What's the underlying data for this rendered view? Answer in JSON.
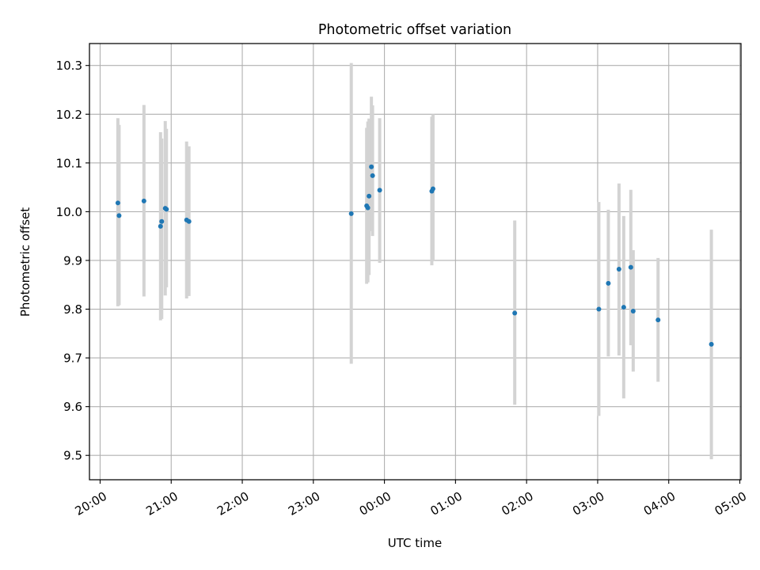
{
  "chart_data": {
    "type": "scatter",
    "title": "Photometric offset variation",
    "xlabel": "UTC time",
    "ylabel": "Photometric offset",
    "x_ticks": [
      "20:00",
      "21:00",
      "22:00",
      "23:00",
      "00:00",
      "01:00",
      "02:00",
      "03:00",
      "04:00",
      "05:00"
    ],
    "y_ticks": [
      "9.5",
      "9.6",
      "9.7",
      "9.8",
      "9.9",
      "10.0",
      "10.1",
      "10.2",
      "10.3"
    ],
    "xlim": [
      "19:51",
      "05:01"
    ],
    "ylim": [
      9.45,
      10.345
    ],
    "grid": true,
    "colors": {
      "point": "#1f77b4",
      "errorbar": "#d3d3d3",
      "grid": "#b0b0b0"
    },
    "points": [
      {
        "x": "20:15",
        "y": 10.018,
        "lo": 9.806,
        "hi": 10.192
      },
      {
        "x": "20:16",
        "y": 9.992,
        "lo": 9.808,
        "hi": 10.178
      },
      {
        "x": "20:37",
        "y": 10.022,
        "lo": 9.826,
        "hi": 10.219
      },
      {
        "x": "20:51",
        "y": 9.97,
        "lo": 9.777,
        "hi": 10.163
      },
      {
        "x": "20:52",
        "y": 9.98,
        "lo": 9.78,
        "hi": 10.15
      },
      {
        "x": "20:55",
        "y": 10.007,
        "lo": 9.828,
        "hi": 10.186
      },
      {
        "x": "20:56",
        "y": 10.005,
        "lo": 9.845,
        "hi": 10.17
      },
      {
        "x": "21:13",
        "y": 9.983,
        "lo": 9.822,
        "hi": 10.144
      },
      {
        "x": "21:15",
        "y": 9.98,
        "lo": 9.827,
        "hi": 10.134
      },
      {
        "x": "23:32",
        "y": 9.996,
        "lo": 9.688,
        "hi": 10.305
      },
      {
        "x": "23:45",
        "y": 10.012,
        "lo": 9.852,
        "hi": 10.172
      },
      {
        "x": "23:46",
        "y": 10.008,
        "lo": 9.855,
        "hi": 10.185
      },
      {
        "x": "23:47",
        "y": 10.032,
        "lo": 9.87,
        "hi": 10.191
      },
      {
        "x": "23:49",
        "y": 10.092,
        "lo": 9.96,
        "hi": 10.236
      },
      {
        "x": "23:50",
        "y": 10.074,
        "lo": 9.95,
        "hi": 10.218
      },
      {
        "x": "23:56",
        "y": 10.044,
        "lo": 9.895,
        "hi": 10.192
      },
      {
        "x": "00:40",
        "y": 10.042,
        "lo": 9.89,
        "hi": 10.195
      },
      {
        "x": "00:41",
        "y": 10.047,
        "lo": 9.9,
        "hi": 10.2
      },
      {
        "x": "01:50",
        "y": 9.792,
        "lo": 9.604,
        "hi": 9.982
      },
      {
        "x": "03:01",
        "y": 9.8,
        "lo": 9.581,
        "hi": 10.02
      },
      {
        "x": "03:09",
        "y": 9.853,
        "lo": 9.703,
        "hi": 10.004
      },
      {
        "x": "03:18",
        "y": 9.882,
        "lo": 9.705,
        "hi": 10.058
      },
      {
        "x": "03:22",
        "y": 9.804,
        "lo": 9.617,
        "hi": 9.991
      },
      {
        "x": "03:28",
        "y": 9.886,
        "lo": 9.726,
        "hi": 10.045
      },
      {
        "x": "03:30",
        "y": 9.796,
        "lo": 9.672,
        "hi": 9.921
      },
      {
        "x": "03:51",
        "y": 9.778,
        "lo": 9.651,
        "hi": 9.905
      },
      {
        "x": "04:36",
        "y": 9.728,
        "lo": 9.492,
        "hi": 9.963
      }
    ]
  }
}
